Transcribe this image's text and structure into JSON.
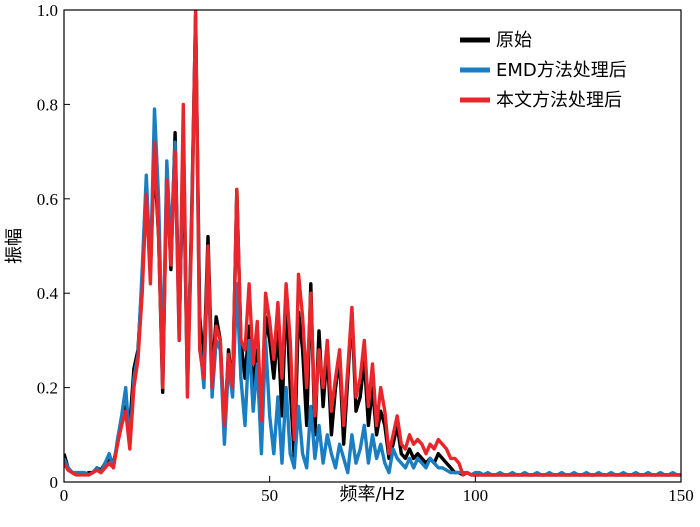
{
  "chart_data": {
    "type": "line",
    "xlabel": "频率/Hz",
    "ylabel": "振幅",
    "xlim": [
      0,
      150
    ],
    "ylim": [
      0,
      1.0
    ],
    "x_ticks": [
      0,
      50,
      100,
      150
    ],
    "x_tick_labels": [
      "0",
      "50",
      "100",
      "150"
    ],
    "y_ticks": [
      0,
      0.2,
      0.4,
      0.6,
      0.8,
      1.0
    ],
    "y_tick_labels": [
      "0",
      "0.2",
      "0.4",
      "0.6",
      "0.8",
      "1.0"
    ],
    "grid": false,
    "legend_position": "top-right",
    "x": [
      0,
      1,
      2,
      3,
      4,
      5,
      6,
      7,
      8,
      9,
      10,
      11,
      12,
      13,
      14,
      15,
      16,
      17,
      18,
      19,
      20,
      21,
      22,
      23,
      24,
      25,
      26,
      27,
      28,
      29,
      30,
      31,
      32,
      33,
      34,
      35,
      36,
      37,
      38,
      39,
      40,
      41,
      42,
      43,
      44,
      45,
      46,
      47,
      48,
      49,
      50,
      51,
      52,
      53,
      54,
      55,
      56,
      57,
      58,
      59,
      60,
      61,
      62,
      63,
      64,
      65,
      66,
      67,
      68,
      69,
      70,
      71,
      72,
      73,
      74,
      75,
      76,
      77,
      78,
      79,
      80,
      81,
      82,
      83,
      84,
      85,
      86,
      87,
      88,
      89,
      90,
      91,
      92,
      93,
      94,
      95,
      96,
      97,
      98,
      99,
      100,
      101,
      102,
      103,
      104,
      105,
      106,
      107,
      108,
      109,
      110,
      111,
      112,
      113,
      114,
      115,
      116,
      117,
      118,
      119,
      120,
      121,
      122,
      123,
      124,
      125,
      126,
      127,
      128,
      129,
      130,
      131,
      132,
      133,
      134,
      135,
      136,
      137,
      138,
      139,
      140,
      141,
      142,
      143,
      144,
      145,
      146,
      147,
      148,
      149,
      150
    ],
    "series": [
      {
        "name": "原始",
        "color": "#000000",
        "values": [
          0.06,
          0.03,
          0.02,
          0.015,
          0.02,
          0.015,
          0.02,
          0.02,
          0.03,
          0.025,
          0.04,
          0.05,
          0.04,
          0.08,
          0.13,
          0.16,
          0.12,
          0.24,
          0.28,
          0.43,
          0.6,
          0.47,
          0.68,
          0.52,
          0.19,
          0.66,
          0.45,
          0.74,
          0.32,
          0.7,
          0.2,
          0.55,
          0.99,
          0.35,
          0.25,
          0.52,
          0.22,
          0.35,
          0.3,
          0.1,
          0.28,
          0.2,
          0.62,
          0.3,
          0.22,
          0.33,
          0.2,
          0.28,
          0.1,
          0.35,
          0.3,
          0.22,
          0.32,
          0.14,
          0.4,
          0.2,
          0.05,
          0.36,
          0.28,
          0.12,
          0.42,
          0.1,
          0.32,
          0.16,
          0.28,
          0.1,
          0.2,
          0.26,
          0.08,
          0.22,
          0.36,
          0.15,
          0.18,
          0.26,
          0.12,
          0.2,
          0.1,
          0.15,
          0.12,
          0.05,
          0.08,
          0.12,
          0.06,
          0.05,
          0.07,
          0.05,
          0.06,
          0.05,
          0.04,
          0.05,
          0.04,
          0.06,
          0.05,
          0.04,
          0.03,
          0.02,
          0.02,
          0.015,
          0.02,
          0.015,
          0.015,
          0.015,
          0.015,
          0.015,
          0.015,
          0.015,
          0.015,
          0.015,
          0.015,
          0.015,
          0.015,
          0.015,
          0.015,
          0.015,
          0.015,
          0.015,
          0.015,
          0.015,
          0.015,
          0.015,
          0.015,
          0.015,
          0.015,
          0.015,
          0.015,
          0.015,
          0.015,
          0.015,
          0.015,
          0.015,
          0.015,
          0.015,
          0.015,
          0.015,
          0.015,
          0.015,
          0.015,
          0.015,
          0.015,
          0.015,
          0.015,
          0.015,
          0.015,
          0.015,
          0.015,
          0.015,
          0.015,
          0.015,
          0.015,
          0.015,
          0.015
        ]
      },
      {
        "name": "EMD方法处理后",
        "color": "#1a7ec2",
        "values": [
          0.05,
          0.03,
          0.02,
          0.02,
          0.02,
          0.02,
          0.015,
          0.02,
          0.03,
          0.02,
          0.04,
          0.06,
          0.03,
          0.09,
          0.14,
          0.2,
          0.08,
          0.22,
          0.27,
          0.45,
          0.65,
          0.45,
          0.79,
          0.6,
          0.24,
          0.68,
          0.5,
          0.72,
          0.3,
          0.74,
          0.22,
          0.52,
          0.97,
          0.3,
          0.2,
          0.48,
          0.18,
          0.3,
          0.28,
          0.08,
          0.25,
          0.18,
          0.42,
          0.22,
          0.12,
          0.3,
          0.15,
          0.25,
          0.06,
          0.3,
          0.14,
          0.06,
          0.18,
          0.04,
          0.2,
          0.06,
          0.03,
          0.16,
          0.06,
          0.03,
          0.16,
          0.05,
          0.12,
          0.04,
          0.1,
          0.06,
          0.03,
          0.08,
          0.05,
          0.02,
          0.1,
          0.04,
          0.07,
          0.12,
          0.04,
          0.1,
          0.05,
          0.08,
          0.04,
          0.02,
          0.07,
          0.05,
          0.04,
          0.03,
          0.05,
          0.03,
          0.05,
          0.04,
          0.03,
          0.05,
          0.04,
          0.03,
          0.03,
          0.025,
          0.02,
          0.02,
          0.02,
          0.02,
          0.02,
          0.015,
          0.02,
          0.02,
          0.015,
          0.02,
          0.015,
          0.015,
          0.02,
          0.015,
          0.015,
          0.02,
          0.015,
          0.015,
          0.02,
          0.015,
          0.015,
          0.02,
          0.015,
          0.015,
          0.02,
          0.015,
          0.015,
          0.02,
          0.015,
          0.015,
          0.02,
          0.015,
          0.015,
          0.02,
          0.015,
          0.015,
          0.02,
          0.015,
          0.015,
          0.02,
          0.015,
          0.015,
          0.02,
          0.015,
          0.015,
          0.02,
          0.015,
          0.015,
          0.02,
          0.015,
          0.015,
          0.02,
          0.015,
          0.015,
          0.02,
          0.015,
          0.015
        ]
      },
      {
        "name": "本文方法处理后",
        "color": "#e8262b",
        "values": [
          0.04,
          0.025,
          0.02,
          0.015,
          0.015,
          0.015,
          0.015,
          0.02,
          0.025,
          0.02,
          0.03,
          0.04,
          0.03,
          0.08,
          0.12,
          0.15,
          0.07,
          0.2,
          0.26,
          0.4,
          0.61,
          0.42,
          0.72,
          0.52,
          0.2,
          0.64,
          0.46,
          0.7,
          0.3,
          0.8,
          0.18,
          0.52,
          1.0,
          0.28,
          0.22,
          0.5,
          0.2,
          0.33,
          0.3,
          0.12,
          0.27,
          0.2,
          0.62,
          0.3,
          0.28,
          0.42,
          0.25,
          0.34,
          0.13,
          0.4,
          0.34,
          0.26,
          0.38,
          0.22,
          0.42,
          0.3,
          0.09,
          0.44,
          0.35,
          0.2,
          0.4,
          0.14,
          0.28,
          0.2,
          0.3,
          0.15,
          0.22,
          0.28,
          0.12,
          0.24,
          0.37,
          0.18,
          0.22,
          0.3,
          0.16,
          0.25,
          0.12,
          0.2,
          0.15,
          0.06,
          0.1,
          0.14,
          0.08,
          0.07,
          0.1,
          0.08,
          0.09,
          0.08,
          0.06,
          0.08,
          0.07,
          0.09,
          0.08,
          0.07,
          0.05,
          0.05,
          0.04,
          0.015,
          0.02,
          0.015,
          0.015,
          0.015,
          0.015,
          0.015,
          0.015,
          0.015,
          0.015,
          0.015,
          0.015,
          0.015,
          0.015,
          0.015,
          0.015,
          0.015,
          0.015,
          0.015,
          0.015,
          0.015,
          0.015,
          0.015,
          0.015,
          0.015,
          0.015,
          0.015,
          0.015,
          0.015,
          0.015,
          0.015,
          0.015,
          0.015,
          0.015,
          0.015,
          0.015,
          0.015,
          0.015,
          0.015,
          0.015,
          0.015,
          0.015,
          0.015,
          0.015,
          0.015,
          0.015,
          0.015,
          0.015,
          0.015,
          0.015,
          0.015,
          0.015,
          0.015,
          0.015
        ]
      }
    ]
  }
}
